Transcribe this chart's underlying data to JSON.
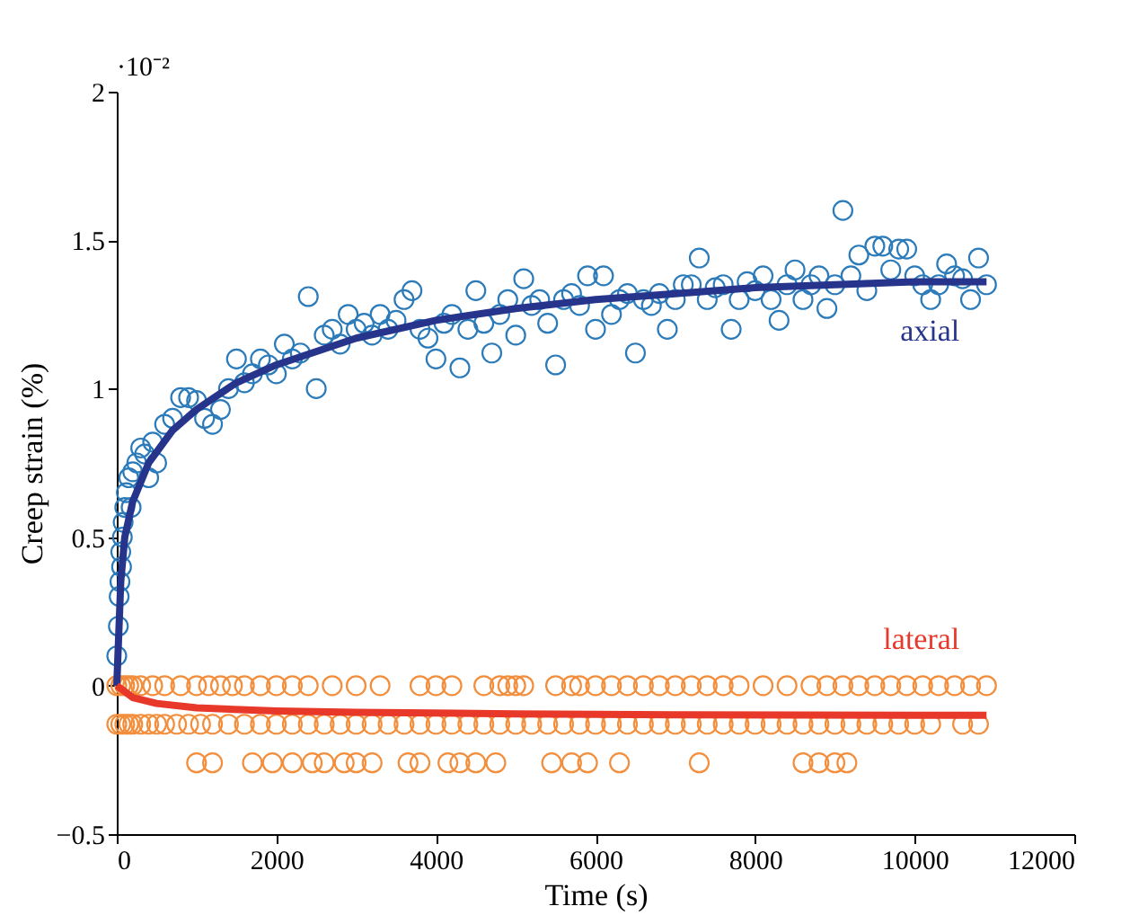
{
  "chart_data": {
    "type": "scatter",
    "xlabel": "Time (s)",
    "ylabel": "Creep strain (%)",
    "annotations": [
      "·10⁻²"
    ],
    "xlim": [
      0,
      12000
    ],
    "ylim": [
      -0.5,
      2
    ],
    "xticks": [
      0,
      2000,
      4000,
      6000,
      8000,
      10000,
      12000
    ],
    "yticks": [
      {
        "value": -0.5,
        "label": "−0.5"
      },
      0,
      0.5,
      1,
      1.5,
      2
    ],
    "grid": false,
    "marker": "circle",
    "series": [
      {
        "color": "#2b7bba",
        "x": [
          0,
          20,
          30,
          40,
          50,
          60,
          70,
          80,
          100,
          120,
          150,
          180,
          200,
          250,
          300,
          350,
          400,
          450,
          500,
          600,
          700,
          800,
          900,
          1000,
          1100,
          1200,
          1300,
          1400,
          1500,
          1600,
          1700,
          1800,
          1900,
          2000,
          2100,
          2200,
          2300,
          2400,
          2500,
          2600,
          2700,
          2800,
          2900,
          3000,
          3100,
          3200,
          3300,
          3400,
          3500,
          3600,
          3700,
          3800,
          3900,
          4000,
          4100,
          4200,
          4300,
          4400,
          4500,
          4600,
          4700,
          4800,
          4900,
          5000,
          5100,
          5200,
          5300,
          5400,
          5500,
          5600,
          5700,
          5800,
          5900,
          6000,
          6100,
          6200,
          6300,
          6400,
          6500,
          6600,
          6700,
          6800,
          6900,
          7000,
          7100,
          7200,
          7300,
          7400,
          7500,
          7600,
          7700,
          7800,
          7900,
          8000,
          8100,
          8200,
          8300,
          8400,
          8500,
          8600,
          8700,
          8800,
          8900,
          9000,
          9100,
          9200,
          9300,
          9400,
          9500,
          9600,
          9700,
          9800,
          9900,
          10000,
          10100,
          10200,
          10300,
          10400,
          10500,
          10600,
          10700,
          10800,
          10900
        ],
        "values": [
          0.1,
          0.2,
          0.3,
          0.35,
          0.45,
          0.4,
          0.5,
          0.55,
          0.6,
          0.65,
          0.7,
          0.6,
          0.72,
          0.75,
          0.8,
          0.78,
          0.7,
          0.82,
          0.75,
          0.88,
          0.9,
          0.97,
          0.97,
          0.96,
          0.9,
          0.88,
          0.93,
          1.0,
          1.1,
          1.02,
          1.05,
          1.1,
          1.08,
          1.05,
          1.15,
          1.1,
          1.12,
          1.31,
          1.0,
          1.18,
          1.2,
          1.15,
          1.25,
          1.2,
          1.22,
          1.18,
          1.25,
          1.2,
          1.23,
          1.3,
          1.33,
          1.2,
          1.17,
          1.1,
          1.22,
          1.25,
          1.07,
          1.2,
          1.33,
          1.22,
          1.12,
          1.25,
          1.3,
          1.18,
          1.37,
          1.28,
          1.3,
          1.22,
          1.08,
          1.3,
          1.32,
          1.28,
          1.38,
          1.2,
          1.38,
          1.25,
          1.3,
          1.32,
          1.12,
          1.3,
          1.28,
          1.32,
          1.2,
          1.3,
          1.35,
          1.35,
          1.44,
          1.3,
          1.34,
          1.35,
          1.2,
          1.3,
          1.36,
          1.33,
          1.38,
          1.3,
          1.23,
          1.35,
          1.4,
          1.3,
          1.35,
          1.38,
          1.27,
          1.35,
          1.6,
          1.38,
          1.45,
          1.33,
          1.48,
          1.48,
          1.4,
          1.47,
          1.47,
          1.38,
          1.35,
          1.3,
          1.35,
          1.42,
          1.38,
          1.37,
          1.3,
          1.44,
          1.35
        ]
      },
      {
        "color": "#f28e3c",
        "x": [
          0,
          50,
          100,
          150,
          200,
          300,
          450,
          600,
          800,
          1000,
          1150,
          1300,
          1450,
          1600,
          1800,
          2000,
          2200,
          2400,
          2700,
          3000,
          3300,
          3800,
          4000,
          4200,
          4600,
          4800,
          4900,
          5000,
          5100,
          5500,
          5700,
          5800,
          6000,
          6200,
          6400,
          6600,
          6800,
          7000,
          7200,
          7400,
          7600,
          7800,
          8100,
          8400,
          8700,
          8900,
          9100,
          9300,
          9500,
          9700,
          9900,
          10100,
          10300,
          10500,
          10700,
          10900,
          0,
          50,
          100,
          150,
          200,
          300,
          400,
          500,
          600,
          750,
          900,
          1050,
          1200,
          1400,
          1600,
          1800,
          2000,
          2200,
          2400,
          2600,
          2800,
          3000,
          3200,
          3400,
          3600,
          3800,
          4000,
          4200,
          4400,
          4600,
          4800,
          5000,
          5200,
          5400,
          5600,
          5800,
          6000,
          6200,
          6400,
          6600,
          6800,
          7000,
          7200,
          7400,
          7600,
          7800,
          8000,
          8200,
          8400,
          8600,
          8800,
          9000,
          9200,
          9400,
          9600,
          9800,
          10000,
          10200,
          10600,
          10800,
          1000,
          1200,
          1700,
          1950,
          2200,
          2450,
          2600,
          2850,
          3000,
          3200,
          3650,
          3800,
          4150,
          4300,
          4500,
          4750,
          5450,
          5700,
          5900,
          6300,
          7300,
          8600,
          8800,
          9000,
          9150
        ],
        "values": [
          0,
          0,
          0,
          0,
          0,
          0,
          0,
          0,
          0,
          0,
          0,
          0,
          0,
          0,
          0,
          0,
          0,
          0,
          0,
          0,
          0,
          0,
          0,
          0,
          0,
          0,
          0,
          0,
          0,
          0,
          0,
          0,
          0,
          0,
          0,
          0,
          0,
          0,
          0,
          0,
          0,
          0,
          0,
          0,
          0,
          0,
          0,
          0,
          0,
          0,
          0,
          0,
          0,
          0,
          0,
          0,
          -0.13,
          -0.13,
          -0.13,
          -0.13,
          -0.13,
          -0.13,
          -0.13,
          -0.13,
          -0.13,
          -0.13,
          -0.13,
          -0.13,
          -0.13,
          -0.13,
          -0.13,
          -0.13,
          -0.13,
          -0.13,
          -0.13,
          -0.13,
          -0.13,
          -0.13,
          -0.13,
          -0.13,
          -0.13,
          -0.13,
          -0.13,
          -0.13,
          -0.13,
          -0.13,
          -0.13,
          -0.13,
          -0.13,
          -0.13,
          -0.13,
          -0.13,
          -0.13,
          -0.13,
          -0.13,
          -0.13,
          -0.13,
          -0.13,
          -0.13,
          -0.13,
          -0.13,
          -0.13,
          -0.13,
          -0.13,
          -0.13,
          -0.13,
          -0.13,
          -0.13,
          -0.13,
          -0.13,
          -0.13,
          -0.13,
          -0.13,
          -0.13,
          -0.13,
          -0.13,
          -0.26,
          -0.26,
          -0.26,
          -0.26,
          -0.26,
          -0.26,
          -0.26,
          -0.26,
          -0.26,
          -0.26,
          -0.26,
          -0.26,
          -0.26,
          -0.26,
          -0.26,
          -0.26,
          -0.26,
          -0.26,
          -0.26,
          -0.26,
          -0.26,
          -0.26,
          -0.26,
          -0.26,
          -0.26
        ]
      },
      {
        "type": "line",
        "name": "axial",
        "color": "#27348b",
        "marker": "none",
        "x": [
          0,
          50,
          100,
          200,
          400,
          700,
          1000,
          1500,
          2000,
          3000,
          4000,
          5000,
          6000,
          7000,
          8000,
          9000,
          10000,
          10900
        ],
        "values": [
          0,
          0.35,
          0.5,
          0.62,
          0.75,
          0.86,
          0.93,
          1.02,
          1.08,
          1.17,
          1.23,
          1.27,
          1.3,
          1.32,
          1.34,
          1.35,
          1.36,
          1.36
        ]
      },
      {
        "type": "line",
        "name": "lateral",
        "color": "#e8382a",
        "marker": "none",
        "x": [
          0,
          200,
          500,
          1000,
          2000,
          3000,
          5000,
          7000,
          10900
        ],
        "values": [
          0,
          -0.04,
          -0.06,
          -0.075,
          -0.085,
          -0.09,
          -0.095,
          -0.098,
          -0.1
        ]
      }
    ]
  }
}
